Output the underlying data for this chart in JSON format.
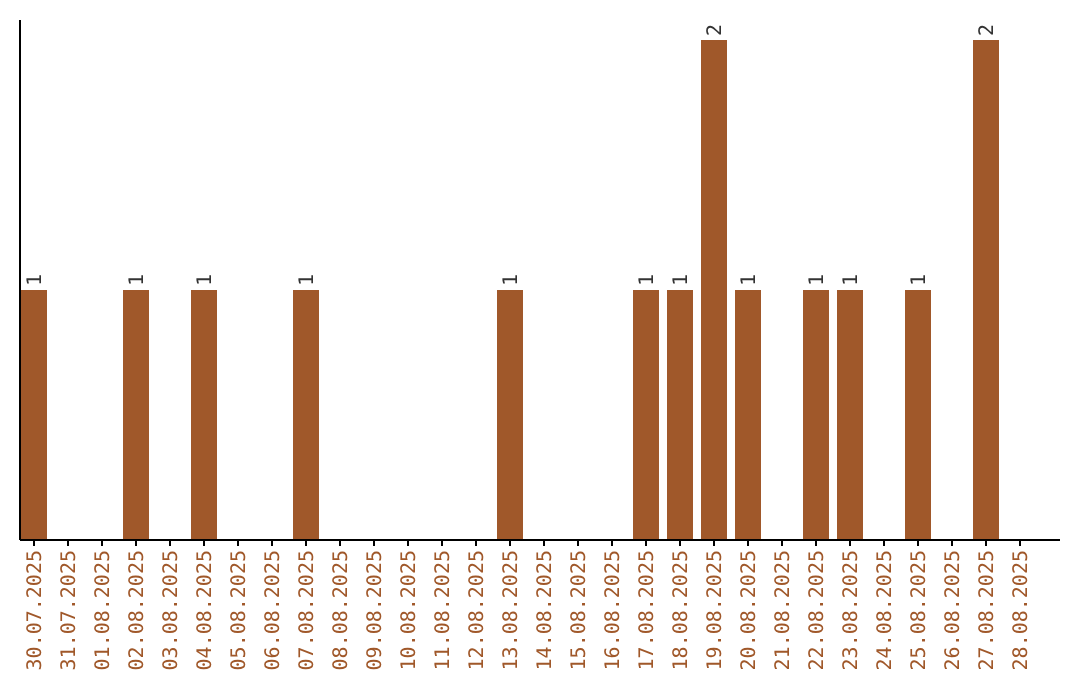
{
  "chart_data": {
    "type": "bar",
    "categories": [
      "30.07.2025",
      "31.07.2025",
      "01.08.2025",
      "02.08.2025",
      "03.08.2025",
      "04.08.2025",
      "05.08.2025",
      "06.08.2025",
      "07.08.2025",
      "08.08.2025",
      "09.08.2025",
      "10.08.2025",
      "11.08.2025",
      "12.08.2025",
      "13.08.2025",
      "14.08.2025",
      "15.08.2025",
      "16.08.2025",
      "17.08.2025",
      "18.08.2025",
      "19.08.2025",
      "20.08.2025",
      "21.08.2025",
      "22.08.2025",
      "23.08.2025",
      "24.08.2025",
      "25.08.2025",
      "26.08.2025",
      "27.08.2025",
      "28.08.2025"
    ],
    "values": [
      1,
      0,
      0,
      1,
      0,
      1,
      0,
      0,
      1,
      0,
      0,
      0,
      0,
      0,
      1,
      0,
      0,
      0,
      1,
      1,
      2,
      1,
      0,
      1,
      1,
      0,
      1,
      0,
      2,
      0
    ],
    "value_labels": [
      "1",
      null,
      null,
      "1",
      null,
      "1",
      null,
      null,
      "1",
      null,
      null,
      null,
      null,
      null,
      "1",
      null,
      null,
      null,
      "1",
      "1",
      "2",
      "1",
      null,
      "1",
      "1",
      null,
      "1",
      null,
      "2",
      null
    ],
    "color": "#a0582a"
  }
}
